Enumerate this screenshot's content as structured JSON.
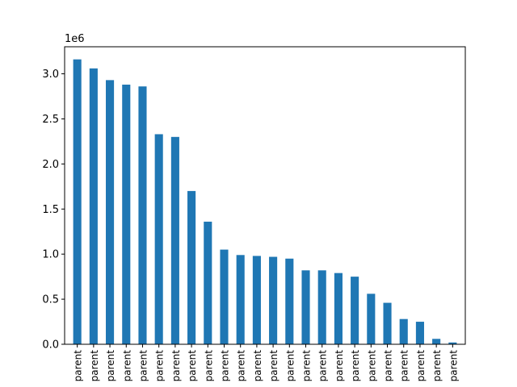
{
  "chart_data": {
    "type": "bar",
    "title": "",
    "xlabel": "",
    "ylabel": "",
    "y_offset_label": "1e6",
    "ylim": [
      0,
      3.3
    ],
    "yticks": [
      0.0,
      0.5,
      1.0,
      1.5,
      2.0,
      2.5,
      3.0
    ],
    "ytick_labels": [
      "0.0",
      "0.5",
      "1.0",
      "1.5",
      "2.0",
      "2.5",
      "3.0"
    ],
    "grid": false,
    "legend": "none",
    "bar_color": "#1f77b4",
    "categories": [
      "parent",
      "parent",
      "parent",
      "parent",
      "parent",
      "parent",
      "parent",
      "parent",
      "parent",
      "parent",
      "parent",
      "parent",
      "parent",
      "parent",
      "parent",
      "parent",
      "parent",
      "parent",
      "parent",
      "parent",
      "parent",
      "parent",
      "parent",
      "parent"
    ],
    "values": [
      3.16,
      3.06,
      2.93,
      2.88,
      2.86,
      2.33,
      2.3,
      1.7,
      1.36,
      1.05,
      0.99,
      0.98,
      0.97,
      0.95,
      0.82,
      0.82,
      0.79,
      0.75,
      0.56,
      0.46,
      0.28,
      0.25,
      0.06,
      0.02
    ]
  }
}
